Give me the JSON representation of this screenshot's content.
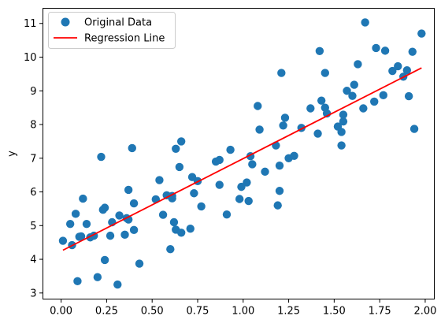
{
  "chart_data": {
    "type": "scatter",
    "title": "",
    "xlabel": "",
    "ylabel": "y",
    "xlim": [
      -0.1,
      2.05
    ],
    "ylim": [
      2.82,
      11.45
    ],
    "xticks": [
      "0.00",
      "0.25",
      "0.50",
      "0.75",
      "1.00",
      "1.25",
      "1.50",
      "1.75",
      "2.00"
    ],
    "xtick_values": [
      0,
      0.25,
      0.5,
      0.75,
      1.0,
      1.25,
      1.5,
      1.75,
      2.0
    ],
    "yticks": [
      "3",
      "4",
      "5",
      "6",
      "7",
      "8",
      "9",
      "10",
      "11"
    ],
    "ytick_values": [
      3,
      4,
      5,
      6,
      7,
      8,
      9,
      10,
      11
    ],
    "grid": false,
    "legend_position": "top-left",
    "legend": [
      "Original Data",
      "Regression Line"
    ],
    "colors": {
      "points": "#1f77b4",
      "line": "#ff0000"
    },
    "series": [
      {
        "name": "Original Data",
        "kind": "scatter",
        "x": [
          0.01,
          0.05,
          0.06,
          0.08,
          0.09,
          0.1,
          0.11,
          0.12,
          0.14,
          0.16,
          0.18,
          0.2,
          0.22,
          0.23,
          0.24,
          0.24,
          0.27,
          0.28,
          0.31,
          0.32,
          0.35,
          0.36,
          0.37,
          0.37,
          0.39,
          0.4,
          0.4,
          0.43,
          0.52,
          0.54,
          0.56,
          0.58,
          0.6,
          0.61,
          0.61,
          0.62,
          0.63,
          0.63,
          0.65,
          0.66,
          0.66,
          0.71,
          0.72,
          0.73,
          0.75,
          0.77,
          0.85,
          0.87,
          0.87,
          0.91,
          0.93,
          0.98,
          0.99,
          1.02,
          1.03,
          1.04,
          1.05,
          1.08,
          1.09,
          1.12,
          1.18,
          1.19,
          1.2,
          1.2,
          1.21,
          1.22,
          1.23,
          1.25,
          1.28,
          1.32,
          1.37,
          1.41,
          1.42,
          1.43,
          1.45,
          1.45,
          1.46,
          1.52,
          1.54,
          1.54,
          1.55,
          1.55,
          1.57,
          1.6,
          1.61,
          1.63,
          1.66,
          1.67,
          1.72,
          1.73,
          1.77,
          1.78,
          1.82,
          1.85,
          1.88,
          1.9,
          1.91,
          1.93,
          1.94,
          1.98
        ],
        "y": [
          4.55,
          5.05,
          4.42,
          5.35,
          3.35,
          4.67,
          4.68,
          5.8,
          5.05,
          4.65,
          4.7,
          3.47,
          7.04,
          5.47,
          3.98,
          5.53,
          4.7,
          5.1,
          3.25,
          5.3,
          4.73,
          5.22,
          5.18,
          6.06,
          7.3,
          5.66,
          4.87,
          3.87,
          5.78,
          6.35,
          5.32,
          5.9,
          4.3,
          5.81,
          5.88,
          5.1,
          4.88,
          7.28,
          6.74,
          7.5,
          4.79,
          4.91,
          6.44,
          5.96,
          6.32,
          5.57,
          6.9,
          6.95,
          6.21,
          5.33,
          7.25,
          5.79,
          6.15,
          6.28,
          5.73,
          7.06,
          6.82,
          8.55,
          7.85,
          6.6,
          7.38,
          5.6,
          6.03,
          6.78,
          9.53,
          7.97,
          8.2,
          7.0,
          7.07,
          7.9,
          8.48,
          7.73,
          10.18,
          8.71,
          9.53,
          8.5,
          8.33,
          7.94,
          7.38,
          7.78,
          8.09,
          8.29,
          9.0,
          8.85,
          9.18,
          9.79,
          8.48,
          11.03,
          8.68,
          10.27,
          8.87,
          10.19,
          9.59,
          9.73,
          9.42,
          9.61,
          8.84,
          10.16,
          7.87,
          10.7
        ]
      },
      {
        "name": "Regression Line",
        "kind": "line",
        "x": [
          0.01,
          1.98
        ],
        "y": [
          4.27,
          9.68
        ]
      }
    ]
  }
}
